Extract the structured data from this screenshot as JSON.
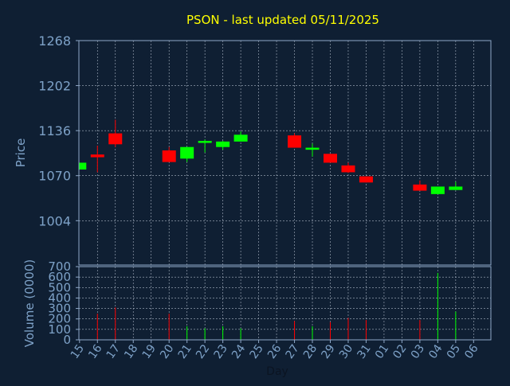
{
  "chart_data": {
    "type": "candlestick",
    "title": "PSON - last updated 05/11/2025",
    "xlabel": "Day",
    "price": {
      "ylabel": "Price",
      "ylim": [
        939,
        1268
      ],
      "ticks": [
        1268,
        1202,
        1136,
        1070,
        1004
      ]
    },
    "volume": {
      "ylabel": "Volume (0000)",
      "ylim": [
        0,
        700
      ],
      "ticks": [
        700,
        600,
        500,
        400,
        300,
        200,
        100,
        0
      ]
    },
    "categories": [
      "15",
      "16",
      "17",
      "18",
      "19",
      "20",
      "21",
      "22",
      "23",
      "24",
      "25",
      "26",
      "27",
      "28",
      "29",
      "30",
      "31",
      "01",
      "02",
      "03",
      "04",
      "05",
      "06"
    ],
    "candles": [
      {
        "i": 0,
        "open": 1079,
        "close": 1089,
        "high": 1089,
        "low": 1079,
        "volume": 0
      },
      {
        "i": 1,
        "open": 1101,
        "close": 1097,
        "high": 1114,
        "low": 1075,
        "volume": 250
      },
      {
        "i": 2,
        "open": 1132,
        "close": 1116,
        "high": 1152,
        "low": 1112,
        "volume": 310
      },
      {
        "i": 5,
        "open": 1107,
        "close": 1090,
        "high": 1112,
        "low": 1090,
        "volume": 250
      },
      {
        "i": 6,
        "open": 1095,
        "close": 1112,
        "high": 1112,
        "low": 1090,
        "volume": 130
      },
      {
        "i": 7,
        "open": 1118,
        "close": 1121,
        "high": 1123,
        "low": 1104,
        "volume": 110
      },
      {
        "i": 8,
        "open": 1112,
        "close": 1120,
        "high": 1121,
        "low": 1108,
        "volume": 130
      },
      {
        "i": 9,
        "open": 1120,
        "close": 1130,
        "high": 1135,
        "low": 1120,
        "volume": 110
      },
      {
        "i": 12,
        "open": 1129,
        "close": 1111,
        "high": 1132,
        "low": 1111,
        "volume": 180
      },
      {
        "i": 13,
        "open": 1108,
        "close": 1111,
        "high": 1117,
        "low": 1098,
        "volume": 130
      },
      {
        "i": 14,
        "open": 1102,
        "close": 1089,
        "high": 1102,
        "low": 1089,
        "volume": 170
      },
      {
        "i": 15,
        "open": 1085,
        "close": 1075,
        "high": 1089,
        "low": 1074,
        "volume": 210
      },
      {
        "i": 16,
        "open": 1069,
        "close": 1060,
        "high": 1069,
        "low": 1060,
        "volume": 190
      },
      {
        "i": 19,
        "open": 1057,
        "close": 1048,
        "high": 1063,
        "low": 1048,
        "volume": 190
      },
      {
        "i": 20,
        "open": 1043,
        "close": 1054,
        "high": 1054,
        "low": 1043,
        "volume": 640
      },
      {
        "i": 21,
        "open": 1049,
        "close": 1054,
        "high": 1061,
        "low": 1049,
        "volume": 270
      }
    ],
    "grid": true,
    "colors": {
      "background": "#0f1f33",
      "up": "#00ff00",
      "down": "#ff0000",
      "grid": "#a9b4c3",
      "axis": "#8fa8c8",
      "title": "#ffff00",
      "text": "#7ea2c8"
    }
  }
}
